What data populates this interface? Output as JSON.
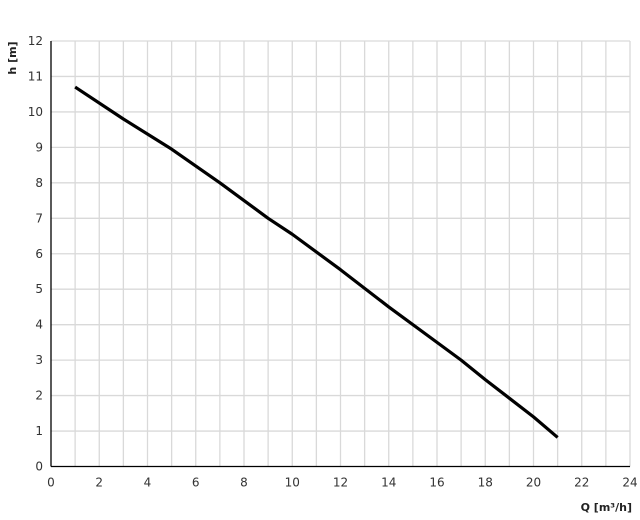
{
  "chart_data": {
    "type": "line",
    "title": "",
    "xlabel": "Q [m³/h]",
    "ylabel": "h [m]",
    "xlim": [
      0,
      24
    ],
    "ylim": [
      0,
      12
    ],
    "xticks": [
      0,
      2,
      4,
      6,
      8,
      10,
      12,
      14,
      16,
      18,
      20,
      22,
      24
    ],
    "yticks": [
      0,
      1,
      2,
      3,
      4,
      5,
      6,
      7,
      8,
      9,
      10,
      11,
      12
    ],
    "grid": true,
    "grid_step": {
      "x": 1,
      "y": 1
    },
    "series": [
      {
        "color": "#000000",
        "x": [
          1,
          3,
          5,
          7,
          9,
          10,
          12,
          14,
          16,
          17,
          18,
          20,
          21
        ],
        "y": [
          10.7,
          9.8,
          8.95,
          8.0,
          7.0,
          6.55,
          5.55,
          4.5,
          3.5,
          3.0,
          2.45,
          1.4,
          0.82
        ]
      }
    ],
    "grid_color": "#d9d9d9"
  }
}
